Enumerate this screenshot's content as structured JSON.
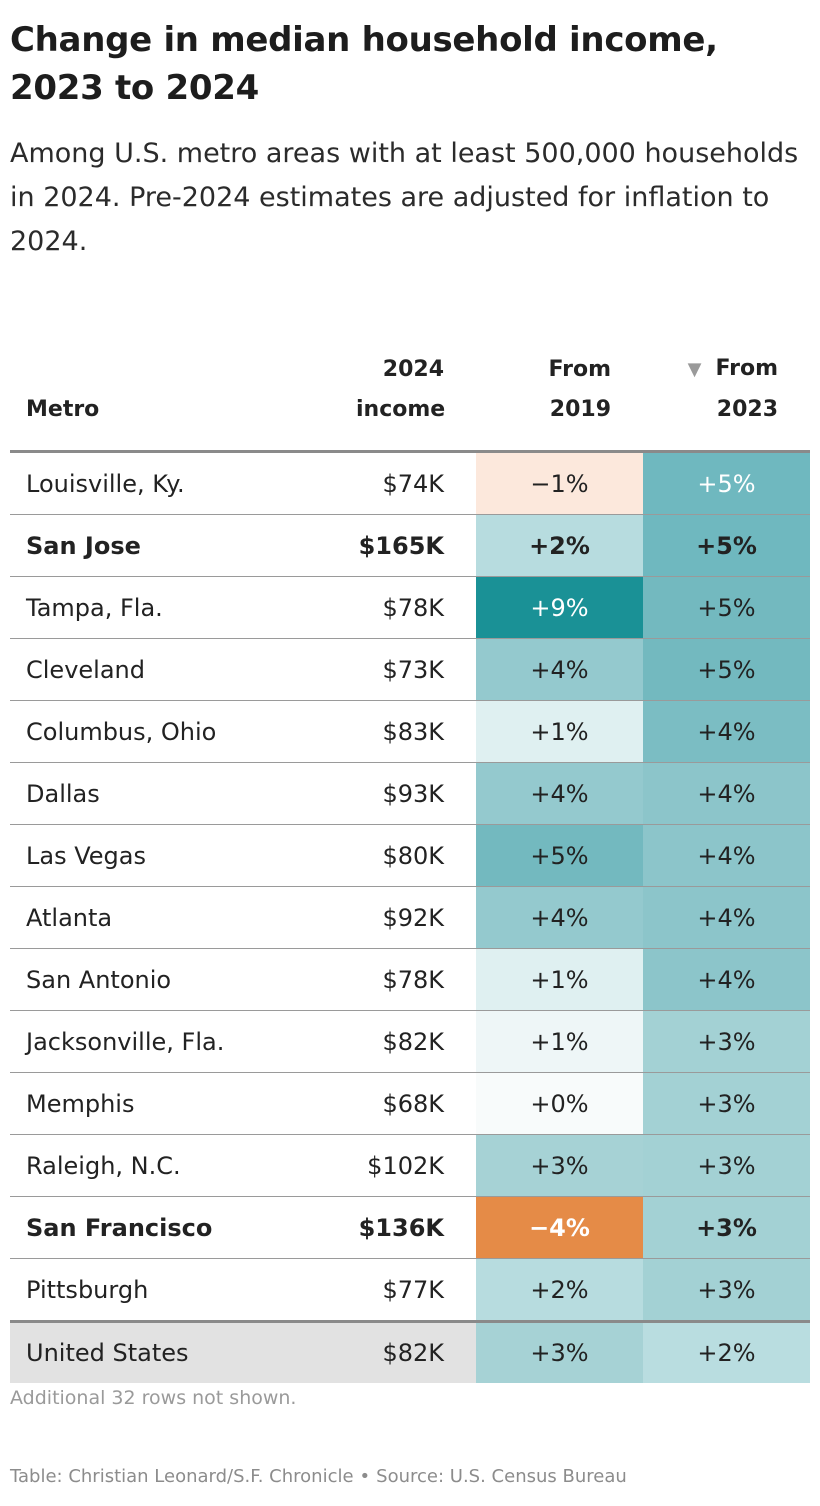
{
  "title": "Change in median household income, 2023 to 2024",
  "subtitle": "Among U.S. metro areas with at least 500,000 households in 2024. Pre-2024 estimates are adjusted for inflation to 2024.",
  "columns": {
    "metro": "Metro",
    "income_line1": "2024",
    "income_line2": "income",
    "from2019_line1": "From",
    "from2019_line2": "2019",
    "from2023_line1": "From",
    "from2023_line2": "2023",
    "sort_icon": "triangle-down-icon"
  },
  "chart_data": {
    "type": "table",
    "sorted_by": "From 2023",
    "sort_direction": "descending",
    "columns": [
      "Metro",
      "2024 income",
      "From 2019",
      "From 2023"
    ],
    "rows": [
      {
        "metro": "Louisville, Ky.",
        "income": "$74K",
        "from2019": "−1%",
        "from2023": "+5%",
        "v2019": -1,
        "v2023": 5,
        "bold": false
      },
      {
        "metro": "San Jose",
        "income": "$165K",
        "from2019": "+2%",
        "from2023": "+5%",
        "v2019": 2,
        "v2023": 5,
        "bold": true
      },
      {
        "metro": "Tampa, Fla.",
        "income": "$78K",
        "from2019": "+9%",
        "from2023": "+5%",
        "v2019": 9,
        "v2023": 5,
        "bold": false
      },
      {
        "metro": "Cleveland",
        "income": "$73K",
        "from2019": "+4%",
        "from2023": "+5%",
        "v2019": 4,
        "v2023": 5,
        "bold": false
      },
      {
        "metro": "Columbus, Ohio",
        "income": "$83K",
        "from2019": "+1%",
        "from2023": "+4%",
        "v2019": 1,
        "v2023": 4,
        "bold": false
      },
      {
        "metro": "Dallas",
        "income": "$93K",
        "from2019": "+4%",
        "from2023": "+4%",
        "v2019": 4,
        "v2023": 4,
        "bold": false
      },
      {
        "metro": "Las Vegas",
        "income": "$80K",
        "from2019": "+5%",
        "from2023": "+4%",
        "v2019": 5,
        "v2023": 4,
        "bold": false
      },
      {
        "metro": "Atlanta",
        "income": "$92K",
        "from2019": "+4%",
        "from2023": "+4%",
        "v2019": 4,
        "v2023": 4,
        "bold": false
      },
      {
        "metro": "San Antonio",
        "income": "$78K",
        "from2019": "+1%",
        "from2023": "+4%",
        "v2019": 1,
        "v2023": 4,
        "bold": false
      },
      {
        "metro": "Jacksonville, Fla.",
        "income": "$82K",
        "from2019": "+1%",
        "from2023": "+3%",
        "v2019": 1,
        "v2023": 3,
        "bold": false
      },
      {
        "metro": "Memphis",
        "income": "$68K",
        "from2019": "+0%",
        "from2023": "+3%",
        "v2019": 0,
        "v2023": 3,
        "bold": false
      },
      {
        "metro": "Raleigh, N.C.",
        "income": "$102K",
        "from2019": "+3%",
        "from2023": "+3%",
        "v2019": 3,
        "v2023": 3,
        "bold": false
      },
      {
        "metro": "San Francisco",
        "income": "$136K",
        "from2019": "−4%",
        "from2023": "+3%",
        "v2019": -4,
        "v2023": 3,
        "bold": true
      },
      {
        "metro": "Pittsburgh",
        "income": "$77K",
        "from2019": "+2%",
        "from2023": "+3%",
        "v2019": 2,
        "v2023": 3,
        "bold": false
      }
    ],
    "total_row": {
      "metro": "United States",
      "income": "$82K",
      "from2019": "+3%",
      "from2023": "+2%",
      "v2019": 3,
      "v2023": 2
    },
    "cell_colors": {
      "from2019": [
        "#fce8dc",
        "#b7dcdf",
        "#1a9196",
        "#94c9ce",
        "#dff0f1",
        "#94c9ce",
        "#73b9bf",
        "#94c9ce",
        "#dff0f1",
        "#eef6f7",
        "#f8fbfb",
        "#a6d2d5",
        "#e58b47",
        "#b7dcdf"
      ],
      "from2023": [
        "#6fb8bf",
        "#6fb8bf",
        "#73b9bf",
        "#73b9bf",
        "#7bbdc3",
        "#8cc5ca",
        "#8cc5ca",
        "#8cc5ca",
        "#8cc5ca",
        "#a3d1d4",
        "#a3d1d4",
        "#a3d1d4",
        "#a3d1d4",
        "#a3d1d4"
      ],
      "total_from2019": "#a6d2d5",
      "total_from2023": "#b9dde0"
    },
    "light_text_cells": {
      "from2019": [
        false,
        false,
        true,
        false,
        false,
        false,
        false,
        false,
        false,
        false,
        false,
        false,
        true,
        false
      ],
      "from2023": [
        true,
        false,
        false,
        false,
        false,
        false,
        false,
        false,
        false,
        false,
        false,
        false,
        false,
        false
      ]
    }
  },
  "note": "Additional 32 rows not shown.",
  "footer": {
    "credit": "Table: Christian Leonard/S.F. Chronicle",
    "separator": "•",
    "source": "Source: U.S. Census Bureau"
  }
}
